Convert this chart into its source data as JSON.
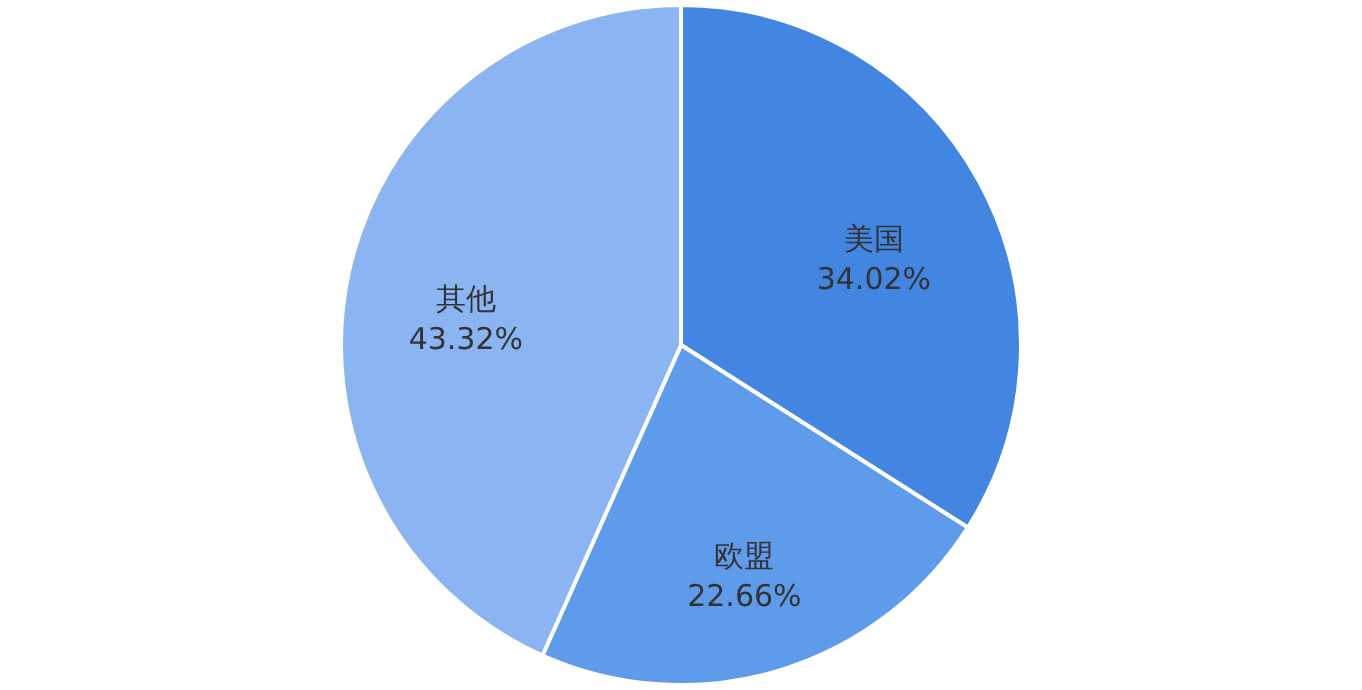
{
  "chart_data": {
    "type": "pie",
    "categories": [
      "美国",
      "欧盟",
      "其他"
    ],
    "values": [
      34.02,
      22.66,
      43.32
    ],
    "colors": [
      "#4286e2",
      "#5f9beb",
      "#8ab4f2"
    ],
    "value_labels": [
      "34.02%",
      "22.66%",
      "43.32%"
    ]
  }
}
